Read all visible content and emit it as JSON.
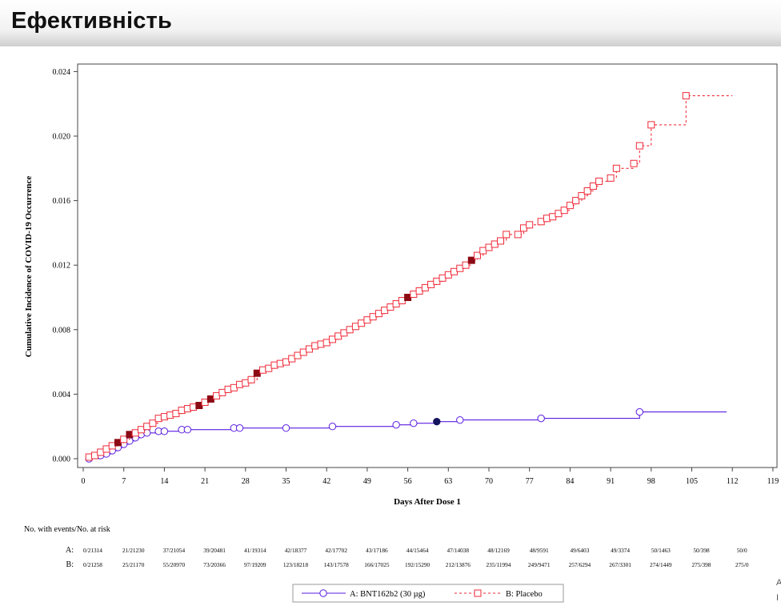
{
  "slide_title": "Ефективність",
  "edge_letters": [
    "A",
    "I"
  ],
  "colors": {
    "vaccine": "#5a1ee0",
    "placebo": "#ef2a38",
    "vaccine_event": "#14145e",
    "placebo_event": "#8c0a14"
  },
  "chart_data": {
    "type": "line",
    "title": "",
    "xlabel": "Days After Dose 1",
    "ylabel": "Cumulative Incidence of COVID-19 Occurrence",
    "xlim": [
      0,
      119
    ],
    "ylim": [
      0,
      0.024
    ],
    "x_ticks": [
      0,
      7,
      14,
      21,
      28,
      35,
      42,
      49,
      56,
      63,
      70,
      77,
      84,
      91,
      98,
      105,
      112,
      119
    ],
    "y_ticks": [
      0.0,
      0.004,
      0.008,
      0.012,
      0.016,
      0.02,
      0.024
    ],
    "y_tick_labels": [
      "0.000",
      "0.004",
      "0.008",
      "0.012",
      "0.016",
      "0.020",
      "0.024"
    ],
    "series": [
      {
        "name": "A: BNT162b2 (30 µg)",
        "color": "#5a1ee0",
        "style": "solid",
        "marker": "circle",
        "x": [
          1,
          3,
          4,
          5,
          6,
          7,
          8,
          9,
          10,
          11,
          13,
          14,
          17,
          18,
          26,
          27,
          35,
          43,
          54,
          57,
          61,
          65,
          79,
          96,
          111
        ],
        "y": [
          0.0,
          0.0002,
          0.0003,
          0.0005,
          0.0007,
          0.0009,
          0.0011,
          0.0013,
          0.0015,
          0.0016,
          0.0017,
          0.0017,
          0.0018,
          0.0018,
          0.0019,
          0.0019,
          0.0019,
          0.002,
          0.0021,
          0.0022,
          0.0023,
          0.0024,
          0.0025,
          0.0029,
          0.0029
        ],
        "event_points": [
          {
            "x": 61,
            "y": 0.0023
          }
        ]
      },
      {
        "name": "B: Placebo",
        "color": "#ef2a38",
        "style": "dashed",
        "marker": "square",
        "x": [
          1,
          2,
          3,
          4,
          5,
          6,
          7,
          8,
          9,
          10,
          11,
          12,
          13,
          14,
          15,
          16,
          17,
          18,
          19,
          20,
          21,
          22,
          23,
          24,
          25,
          26,
          27,
          28,
          29,
          30,
          31,
          32,
          33,
          34,
          35,
          36,
          37,
          38,
          39,
          40,
          41,
          42,
          43,
          44,
          45,
          46,
          47,
          48,
          49,
          50,
          51,
          52,
          53,
          54,
          55,
          56,
          57,
          58,
          59,
          60,
          61,
          62,
          63,
          64,
          65,
          66,
          67,
          68,
          69,
          70,
          71,
          72,
          73,
          75,
          76,
          77,
          79,
          80,
          81,
          82,
          83,
          84,
          85,
          86,
          87,
          88,
          89,
          91,
          92,
          95,
          96,
          98,
          104,
          112
        ],
        "y": [
          0.0001,
          0.0002,
          0.0004,
          0.0006,
          0.0008,
          0.001,
          0.0012,
          0.0015,
          0.0016,
          0.0018,
          0.002,
          0.0022,
          0.0025,
          0.0026,
          0.0027,
          0.0028,
          0.003,
          0.0031,
          0.0032,
          0.0033,
          0.0035,
          0.0037,
          0.0039,
          0.0041,
          0.0043,
          0.0044,
          0.0046,
          0.0047,
          0.0049,
          0.0053,
          0.0055,
          0.0056,
          0.0058,
          0.0059,
          0.006,
          0.0062,
          0.0064,
          0.0066,
          0.0068,
          0.007,
          0.0071,
          0.0072,
          0.0074,
          0.0076,
          0.0078,
          0.008,
          0.0082,
          0.0084,
          0.0086,
          0.0088,
          0.009,
          0.0092,
          0.0094,
          0.0096,
          0.0098,
          0.01,
          0.0102,
          0.0104,
          0.0106,
          0.0108,
          0.011,
          0.0112,
          0.0114,
          0.0116,
          0.0118,
          0.012,
          0.0123,
          0.0126,
          0.0129,
          0.0131,
          0.0133,
          0.0135,
          0.0139,
          0.0139,
          0.0143,
          0.0145,
          0.0147,
          0.0149,
          0.015,
          0.0152,
          0.0154,
          0.0157,
          0.016,
          0.0163,
          0.0166,
          0.0169,
          0.0172,
          0.0174,
          0.018,
          0.0183,
          0.0194,
          0.0207,
          0.0225,
          0.0225
        ],
        "event_points": [
          {
            "x": 6,
            "y": 0.001
          },
          {
            "x": 8,
            "y": 0.0015
          },
          {
            "x": 20,
            "y": 0.0033
          },
          {
            "x": 22,
            "y": 0.0037
          },
          {
            "x": 30,
            "y": 0.0053
          },
          {
            "x": 56,
            "y": 0.01
          },
          {
            "x": 67,
            "y": 0.0123
          }
        ]
      }
    ],
    "legend": {
      "position": "bottom-center",
      "entries": [
        "A: BNT162b2 (30 µg)",
        "B: Placebo"
      ]
    },
    "risk_table": {
      "label": "No. with events/No. at risk",
      "rows": [
        {
          "name": "A:",
          "values": [
            "0/21314",
            "21/21230",
            "37/21054",
            "39/20481",
            "41/19314",
            "42/18377",
            "42/17702",
            "43/17186",
            "44/15464",
            "47/14038",
            "48/12169",
            "48/9591",
            "49/6403",
            "49/3374",
            "50/1463",
            "50/398",
            "50/0"
          ]
        },
        {
          "name": "B:",
          "values": [
            "0/21258",
            "25/21170",
            "55/20970",
            "73/20366",
            "97/19209",
            "123/18218",
            "143/17578",
            "166/17025",
            "192/15290",
            "212/13876",
            "235/11994",
            "249/9471",
            "257/6294",
            "267/3301",
            "274/1449",
            "275/398",
            "275/0"
          ]
        }
      ]
    }
  }
}
